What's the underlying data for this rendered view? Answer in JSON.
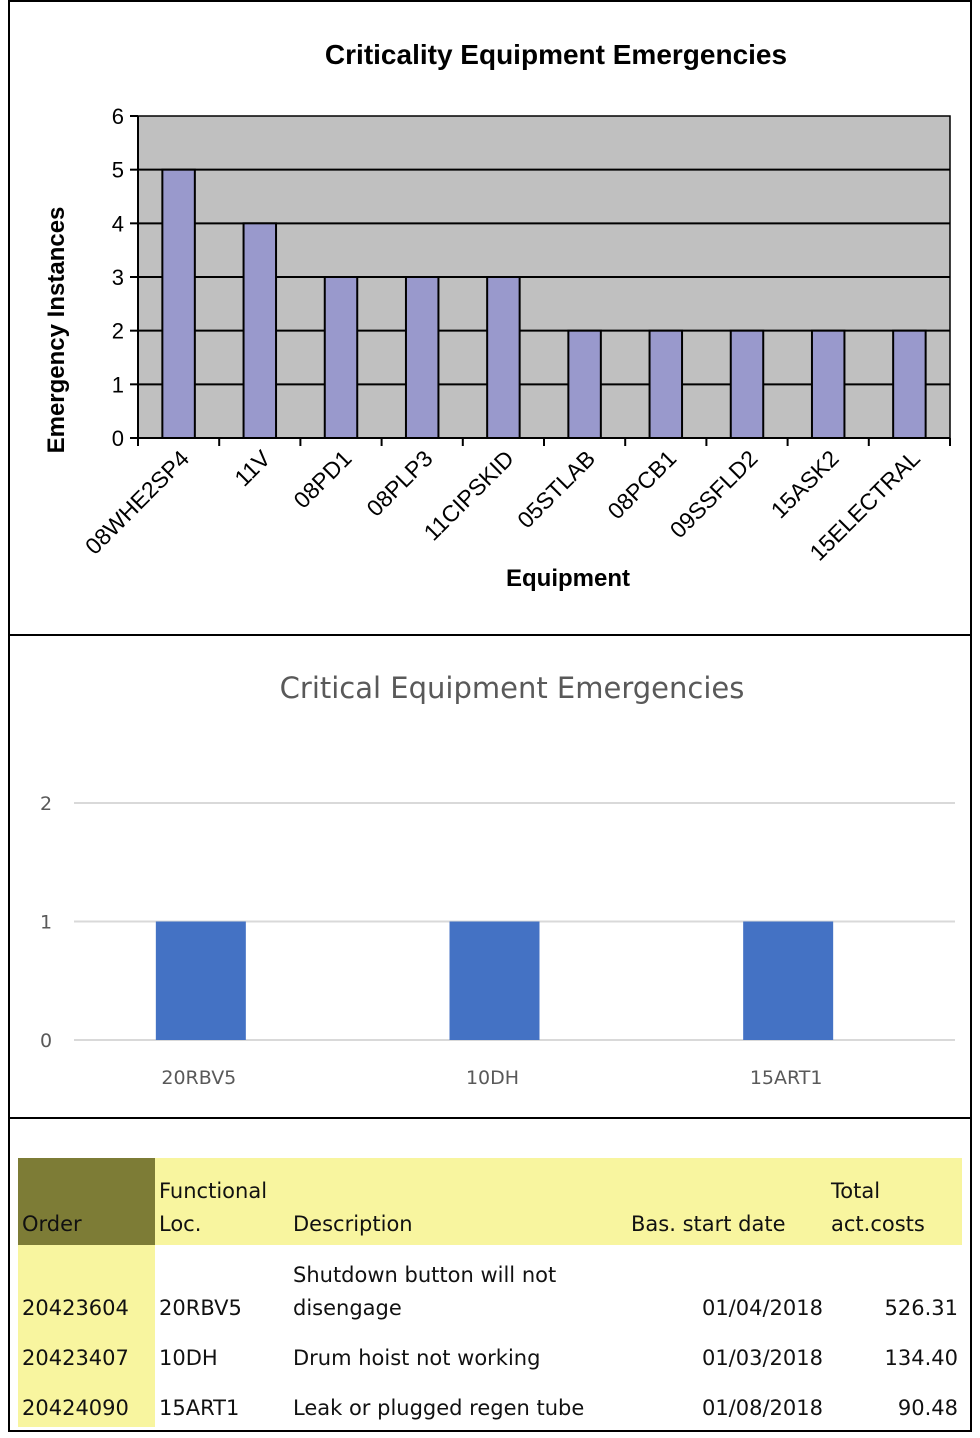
{
  "chart_data": [
    {
      "type": "bar",
      "title": "Criticality Equipment Emergencies",
      "xlabel": "Equipment",
      "ylabel": "Emergency Instances",
      "ylim": [
        0,
        6
      ],
      "yticks": [
        "0",
        "1",
        "2",
        "3",
        "4",
        "5",
        "6"
      ],
      "grid": true,
      "colors": {
        "bar": "#9999cc",
        "plot_bg": "#c0c0c0",
        "border": "#000000"
      },
      "categories": [
        "08WHE2SP4",
        "11V",
        "08PD1",
        "08PLP3",
        "11CIPSKID",
        "05STLAB",
        "08PCB1",
        "09SSFLD2",
        "15ASK2",
        "15ELECTRAL"
      ],
      "values": [
        5,
        4,
        3,
        3,
        3,
        2,
        2,
        2,
        2,
        2
      ]
    },
    {
      "type": "bar",
      "title": "Critical Equipment Emergencies",
      "xlabel": "",
      "ylabel": "",
      "ylim": [
        0,
        2
      ],
      "yticks": [
        "0",
        "1",
        "2"
      ],
      "grid": true,
      "colors": {
        "bar": "#4472c4",
        "grid": "#d9d9d9",
        "text": "#595959"
      },
      "categories": [
        "20RBV5",
        "10DH",
        "15ART1"
      ],
      "values": [
        1,
        1,
        1
      ]
    }
  ],
  "table": {
    "headers": {
      "order": "Order",
      "loc_line1": "Functional",
      "loc_line2": "Loc.",
      "description": "Description",
      "start_date": "Bas. start date",
      "costs_line1": "Total",
      "costs_line2": "act.costs"
    },
    "rows": [
      {
        "order": "20423604",
        "loc": "20RBV5",
        "desc_line1": "Shutdown button will not",
        "desc_line2": "disengage",
        "date": "01/04/2018",
        "cost": "526.31"
      },
      {
        "order": "20423407",
        "loc": "10DH",
        "desc_line1": "Drum hoist not working",
        "desc_line2": "",
        "date": "01/03/2018",
        "cost": "134.40"
      },
      {
        "order": "20424090",
        "loc": "15ART1",
        "desc_line1": "Leak or plugged regen tube",
        "desc_line2": "",
        "date": "01/08/2018",
        "cost": "90.48"
      }
    ]
  }
}
